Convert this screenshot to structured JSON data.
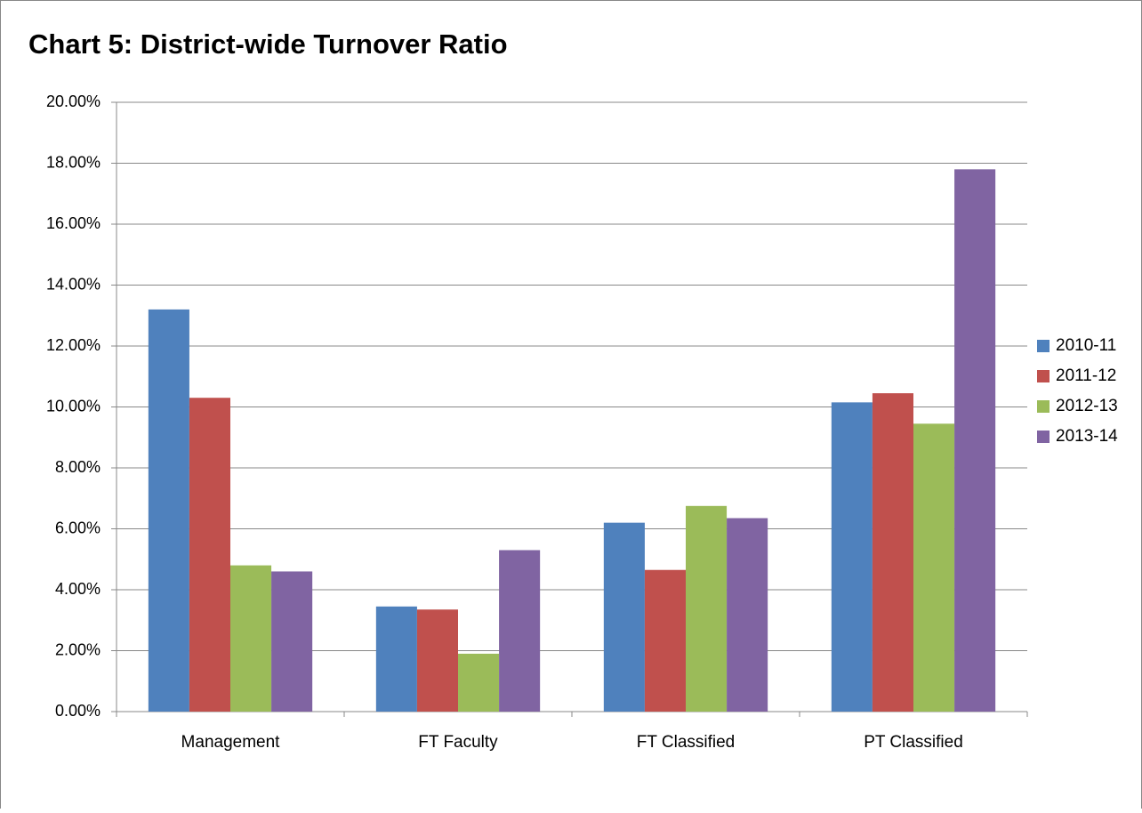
{
  "chart_data": {
    "type": "bar",
    "title": "Chart 5:  District-wide Turnover Ratio",
    "categories": [
      "Management",
      "FT Faculty",
      "FT Classified",
      "PT Classified"
    ],
    "series": [
      {
        "name": "2010-11",
        "color": "#4f81bd",
        "values": [
          13.2,
          3.45,
          6.2,
          10.15
        ]
      },
      {
        "name": "2011-12",
        "color": "#c0504d",
        "values": [
          10.3,
          3.35,
          4.65,
          10.45
        ]
      },
      {
        "name": "2012-13",
        "color": "#9bbb59",
        "values": [
          4.8,
          1.9,
          6.75,
          9.45
        ]
      },
      {
        "name": "2013-14",
        "color": "#8064a2",
        "values": [
          4.6,
          5.3,
          6.35,
          17.8
        ]
      }
    ],
    "ylim": [
      0,
      20
    ],
    "yticks": [
      {
        "value": 0,
        "label": "0.00%"
      },
      {
        "value": 2,
        "label": "2.00%"
      },
      {
        "value": 4,
        "label": "4.00%"
      },
      {
        "value": 6,
        "label": "6.00%"
      },
      {
        "value": 8,
        "label": "8.00%"
      },
      {
        "value": 10,
        "label": "10.00%"
      },
      {
        "value": 12,
        "label": "12.00%"
      },
      {
        "value": 14,
        "label": "14.00%"
      },
      {
        "value": 16,
        "label": "16.00%"
      },
      {
        "value": 18,
        "label": "18.00%"
      },
      {
        "value": 20,
        "label": "20.00%"
      }
    ],
    "grid": true,
    "legend": "right"
  }
}
